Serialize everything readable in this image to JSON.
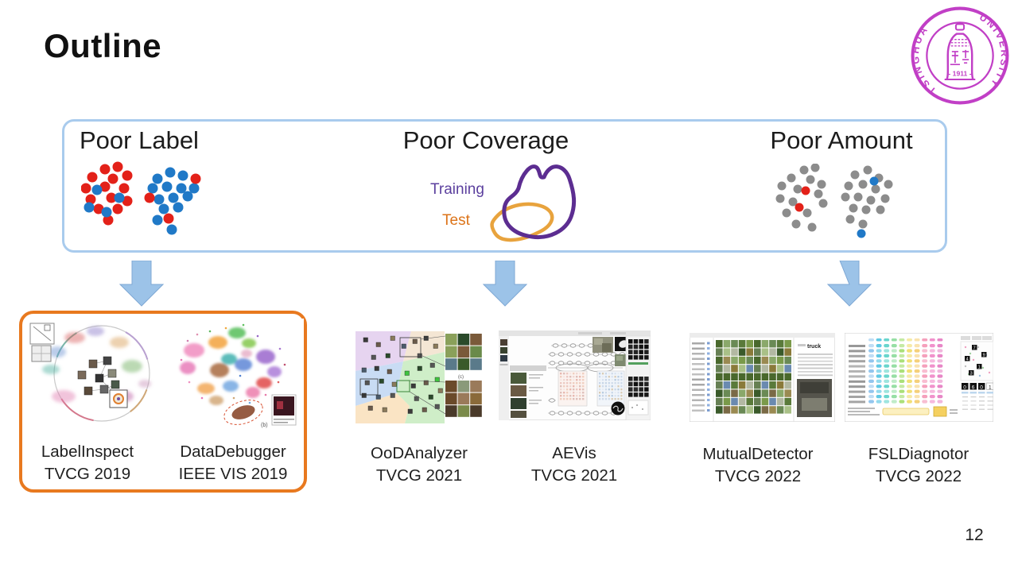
{
  "slide": {
    "title": "Outline",
    "page_number": "12"
  },
  "logo": {
    "arc_left": "TSINGHUA",
    "arc_right": "UNIVERSITY",
    "year": "- 1911 -",
    "color": "#C13FC6"
  },
  "overview": {
    "border_color": "#A9CBED",
    "sections": [
      {
        "label": "Poor Label"
      },
      {
        "label": "Poor Coverage",
        "legend": [
          {
            "label": "Training",
            "color": "#5B3F9E"
          },
          {
            "label": "Test",
            "color": "#DC7318"
          }
        ]
      },
      {
        "label": "Poor Amount"
      }
    ]
  },
  "arrow_color": "#9CC3E8",
  "highlight_box_color": "#E8791F",
  "dot_colors": {
    "red": "#E32119",
    "blue": "#2079C7",
    "gray": "#8C8C8C"
  },
  "papers": [
    {
      "name": "LabelInspect",
      "venue": "TVCG 2019",
      "highlighted": true
    },
    {
      "name": "DataDebugger",
      "venue": "IEEE VIS 2019",
      "highlighted": true
    },
    {
      "name": "OoDAnalyzer",
      "venue": "TVCG 2021",
      "highlighted": false
    },
    {
      "name": "AEVis",
      "venue": "TVCG 2021",
      "highlighted": false
    },
    {
      "name": "MutualDetector",
      "venue": "TVCG 2022",
      "highlighted": false
    },
    {
      "name": "FSLDiagnotor",
      "venue": "TVCG 2022",
      "highlighted": false
    }
  ],
  "thumbnails": {
    "datadebugger_note": "(b)",
    "oodanalyzer_note": "(c)",
    "mutualdetector_logo": "truck",
    "fsl_digits": [
      "0",
      "6",
      "0",
      "1"
    ],
    "fsl_scatter_digits": [
      "7",
      "9",
      "4",
      "1",
      "3"
    ]
  },
  "scatters": {
    "label_left": {
      "r": 6.5,
      "dots": [
        [
          30,
          10,
          "red"
        ],
        [
          46,
          7,
          "red"
        ],
        [
          14,
          20,
          "red"
        ],
        [
          40,
          22,
          "red"
        ],
        [
          58,
          18,
          "red"
        ],
        [
          6,
          34,
          "red"
        ],
        [
          30,
          32,
          "red"
        ],
        [
          54,
          34,
          "red"
        ],
        [
          12,
          48,
          "red"
        ],
        [
          38,
          46,
          "red"
        ],
        [
          58,
          50,
          "red"
        ],
        [
          22,
          60,
          "red"
        ],
        [
          46,
          60,
          "red"
        ],
        [
          34,
          74,
          "red"
        ],
        [
          20,
          36,
          "blue"
        ],
        [
          10,
          58,
          "blue"
        ],
        [
          48,
          46,
          "blue"
        ],
        [
          32,
          64,
          "blue"
        ]
      ]
    },
    "label_right": {
      "r": 6.5,
      "dots": [
        [
          96,
          22,
          "blue"
        ],
        [
          112,
          14,
          "blue"
        ],
        [
          128,
          18,
          "blue"
        ],
        [
          90,
          34,
          "blue"
        ],
        [
          108,
          32,
          "blue"
        ],
        [
          126,
          34,
          "blue"
        ],
        [
          142,
          34,
          "blue"
        ],
        [
          98,
          48,
          "blue"
        ],
        [
          116,
          46,
          "blue"
        ],
        [
          134,
          44,
          "blue"
        ],
        [
          104,
          60,
          "blue"
        ],
        [
          122,
          58,
          "blue"
        ],
        [
          96,
          74,
          "blue"
        ],
        [
          114,
          86,
          "blue"
        ],
        [
          144,
          22,
          "red"
        ],
        [
          86,
          46,
          "red"
        ],
        [
          110,
          72,
          "red"
        ]
      ]
    },
    "amount_left": {
      "r": 5.5,
      "dots": [
        [
          36,
          8,
          "gray"
        ],
        [
          50,
          5,
          "gray"
        ],
        [
          20,
          18,
          "gray"
        ],
        [
          44,
          20,
          "gray"
        ],
        [
          8,
          28,
          "gray"
        ],
        [
          58,
          26,
          "gray"
        ],
        [
          28,
          32,
          "gray"
        ],
        [
          54,
          38,
          "gray"
        ],
        [
          6,
          44,
          "gray"
        ],
        [
          22,
          48,
          "gray"
        ],
        [
          60,
          50,
          "gray"
        ],
        [
          14,
          62,
          "gray"
        ],
        [
          40,
          62,
          "gray"
        ],
        [
          26,
          76,
          "gray"
        ],
        [
          46,
          80,
          "gray"
        ],
        [
          38,
          34,
          "red"
        ],
        [
          30,
          55,
          "red"
        ]
      ]
    },
    "amount_right": {
      "r": 5.5,
      "dots": [
        [
          100,
          14,
          "gray"
        ],
        [
          116,
          8,
          "gray"
        ],
        [
          130,
          18,
          "gray"
        ],
        [
          92,
          28,
          "gray"
        ],
        [
          110,
          26,
          "gray"
        ],
        [
          126,
          32,
          "gray"
        ],
        [
          142,
          26,
          "gray"
        ],
        [
          88,
          42,
          "gray"
        ],
        [
          104,
          42,
          "gray"
        ],
        [
          120,
          46,
          "gray"
        ],
        [
          138,
          44,
          "gray"
        ],
        [
          98,
          56,
          "gray"
        ],
        [
          114,
          58,
          "gray"
        ],
        [
          132,
          58,
          "gray"
        ],
        [
          94,
          70,
          "gray"
        ],
        [
          110,
          76,
          "gray"
        ],
        [
          124,
          22,
          "blue"
        ],
        [
          108,
          88,
          "blue"
        ]
      ]
    }
  }
}
